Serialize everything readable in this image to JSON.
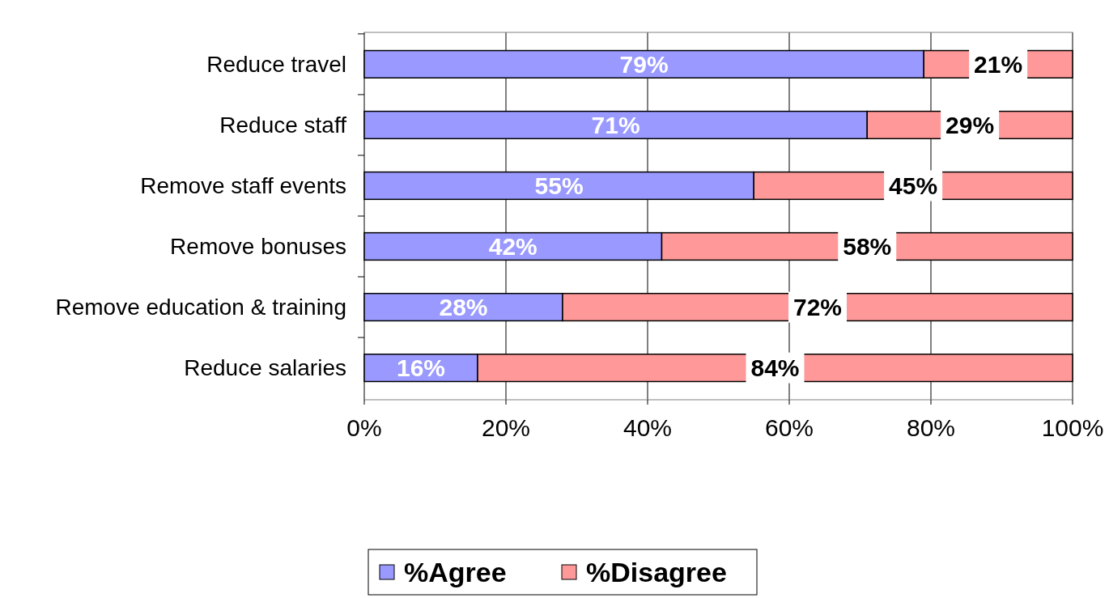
{
  "chart_data": {
    "type": "bar",
    "orientation": "horizontal",
    "stacked": true,
    "categories": [
      "Reduce travel",
      "Reduce staff",
      "Remove staff events",
      "Remove bonuses",
      "Remove education & training",
      "Reduce salaries"
    ],
    "series": [
      {
        "name": "%Agree",
        "color": "#9999ff",
        "values": [
          79,
          71,
          55,
          42,
          28,
          16
        ],
        "value_labels": [
          "79%",
          "71%",
          "55%",
          "42%",
          "28%",
          "16%"
        ]
      },
      {
        "name": "%Disagree",
        "color": "#ff9999",
        "values": [
          21,
          29,
          45,
          58,
          72,
          84
        ],
        "value_labels": [
          "21%",
          "29%",
          "45%",
          "58%",
          "72%",
          "84%"
        ]
      }
    ],
    "xlim": [
      0,
      100
    ],
    "xticks": [
      {
        "value": 0,
        "label": "0%"
      },
      {
        "value": 20,
        "label": "20%"
      },
      {
        "value": 40,
        "label": "40%"
      },
      {
        "value": 60,
        "label": "60%"
      },
      {
        "value": 80,
        "label": "80%"
      },
      {
        "value": 100,
        "label": "100%"
      }
    ],
    "grid": "x",
    "legend": "bottom"
  }
}
